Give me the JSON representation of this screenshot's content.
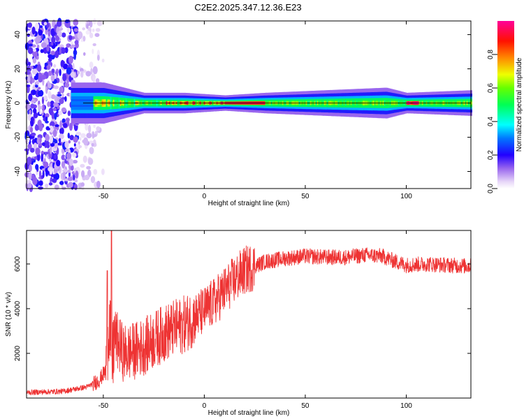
{
  "chart_data": [
    {
      "type": "heatmap",
      "title": "C2E2.2025.347.12.36.E23",
      "xlabel": "Height of straight line (km)",
      "ylabel": "Frequency (Hz)",
      "xlim": [
        -88,
        132
      ],
      "ylim": [
        -50,
        48
      ],
      "xticks": [
        -50,
        0,
        50,
        100
      ],
      "xtick_labels": [
        "-50",
        "0",
        "50",
        "100"
      ],
      "yticks": [
        -40,
        -20,
        0,
        20,
        40
      ],
      "ytick_labels": [
        "-40",
        "-20",
        "0",
        "20",
        "40"
      ],
      "colorbar": {
        "label": "Normalized spectral amplitude",
        "range": [
          0,
          1
        ],
        "ticks": [
          0.0,
          0.2,
          0.4,
          0.6,
          0.8
        ],
        "tick_labels": [
          "0.0",
          "0.2",
          "0.4",
          "0.6",
          "0.8"
        ]
      },
      "band_center_hz": 0,
      "band_halfwidth_hz_by_height": [
        {
          "x": -65,
          "w": 4
        },
        {
          "x": -50,
          "w": 4
        },
        {
          "x": -30,
          "w": 2
        },
        {
          "x": -10,
          "w": 2
        },
        {
          "x": 10,
          "w": 1.5
        },
        {
          "x": 30,
          "w": 2
        },
        {
          "x": 60,
          "w": 2.5
        },
        {
          "x": 90,
          "w": 3
        },
        {
          "x": 100,
          "w": 2
        },
        {
          "x": 132,
          "w": 2.5
        }
      ],
      "noise_region_km": [
        -88,
        -50
      ]
    },
    {
      "type": "line",
      "title": "",
      "xlabel": "Height of straight line (km)",
      "ylabel": "SNR (10 * v/v)",
      "xlim": [
        -88,
        132
      ],
      "ylim": [
        0,
        7500
      ],
      "xticks": [
        -50,
        0,
        50,
        100
      ],
      "xtick_labels": [
        "-50",
        "0",
        "50",
        "100"
      ],
      "yticks": [
        2000,
        4000,
        6000
      ],
      "ytick_labels": [
        "2000",
        "4000",
        "6000"
      ],
      "color": "#ee3333",
      "series_envelope": [
        {
          "x": -88,
          "y": 250
        },
        {
          "x": -70,
          "y": 300
        },
        {
          "x": -58,
          "y": 500
        },
        {
          "x": -52,
          "y": 800
        },
        {
          "x": -49,
          "y": 1200
        },
        {
          "x": -47,
          "y": 3500
        },
        {
          "x": -45.5,
          "y": 1500
        },
        {
          "x": -44.5,
          "y": 2800
        },
        {
          "x": -40,
          "y": 2000
        },
        {
          "x": -35,
          "y": 2100
        },
        {
          "x": -30,
          "y": 2300
        },
        {
          "x": -25,
          "y": 2600
        },
        {
          "x": -20,
          "y": 2900
        },
        {
          "x": -15,
          "y": 3100
        },
        {
          "x": -10,
          "y": 3300
        },
        {
          "x": -5,
          "y": 3600
        },
        {
          "x": 0,
          "y": 3900
        },
        {
          "x": 5,
          "y": 4300
        },
        {
          "x": 10,
          "y": 4800
        },
        {
          "x": 15,
          "y": 5300
        },
        {
          "x": 20,
          "y": 5700
        },
        {
          "x": 25,
          "y": 5900
        },
        {
          "x": 30,
          "y": 6100
        },
        {
          "x": 40,
          "y": 6250
        },
        {
          "x": 50,
          "y": 6350
        },
        {
          "x": 60,
          "y": 6300
        },
        {
          "x": 70,
          "y": 6300
        },
        {
          "x": 80,
          "y": 6400
        },
        {
          "x": 88,
          "y": 6350
        },
        {
          "x": 95,
          "y": 6100
        },
        {
          "x": 100,
          "y": 5950
        },
        {
          "x": 110,
          "y": 6000
        },
        {
          "x": 120,
          "y": 5950
        },
        {
          "x": 132,
          "y": 5900
        }
      ],
      "peaks": [
        {
          "x": -46,
          "y": 7500
        },
        {
          "x": -48,
          "y": 5700
        }
      ]
    }
  ]
}
